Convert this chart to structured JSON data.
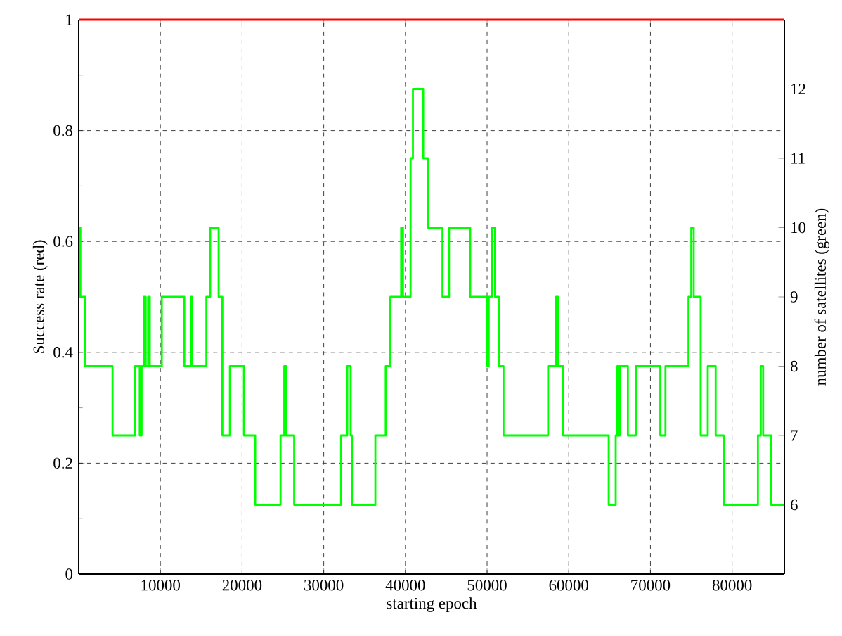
{
  "chart_data": {
    "type": "step",
    "xlabel": "starting epoch",
    "ylabel": "Success rate (red)",
    "y2label": "number of satellites (green)",
    "xlim": [
      0,
      86400
    ],
    "xticks": [
      10000,
      20000,
      30000,
      40000,
      50000,
      60000,
      70000,
      80000
    ],
    "ylim": [
      0,
      1
    ],
    "yticks": [
      0,
      0.2,
      0.4,
      0.6,
      0.8,
      1
    ],
    "y2lim": [
      5,
      13
    ],
    "y2ticks": [
      6,
      7,
      8,
      9,
      10,
      11,
      12
    ],
    "grid": true,
    "series": [
      {
        "color": "#ff0000",
        "x": [
          0,
          86400
        ],
        "values": [
          1,
          1
        ]
      },
      {
        "color": "#00ff00",
        "axis": "y2",
        "x": [
          0,
          200,
          800,
          4140,
          6900,
          7470,
          7700,
          8000,
          8200,
          8500,
          8700,
          10170,
          12930,
          13740,
          13900,
          15630,
          16090,
          17130,
          17590,
          18510,
          20230,
          21610,
          24710,
          25170,
          25400,
          26380,
          32120,
          32880,
          33300,
          33450,
          36320,
          37590,
          38160,
          39480,
          39700,
          40630,
          40920,
          42180,
          42760,
          44540,
          45340,
          47930,
          50000,
          50200,
          50570,
          50980,
          51440,
          52010,
          57470,
          58450,
          58700,
          59310,
          64890,
          65750,
          65950,
          66100,
          66250,
          67240,
          68220,
          71210,
          71840,
          74660,
          75000,
          75300,
          76150,
          77020,
          77990,
          78970,
          83160,
          83500,
          83800,
          84770,
          86400
        ],
        "values": [
          10,
          9,
          8,
          7,
          8,
          7,
          8,
          9,
          8,
          9,
          8,
          9,
          8,
          9,
          8,
          9,
          10,
          9,
          7,
          8,
          7,
          6,
          7,
          8,
          7,
          6,
          7,
          8,
          7,
          6,
          7,
          8,
          9,
          10,
          9,
          11,
          12,
          11,
          10,
          9,
          10,
          9,
          8,
          9,
          10,
          9,
          8,
          7,
          8,
          9,
          8,
          7,
          6,
          7,
          8,
          7,
          8,
          7,
          8,
          7,
          8,
          9,
          10,
          9,
          7,
          8,
          7,
          6,
          7,
          8,
          7,
          6,
          6
        ]
      }
    ]
  }
}
